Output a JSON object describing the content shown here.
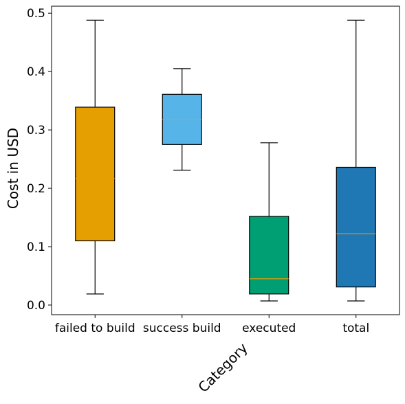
{
  "chart_data": {
    "type": "box",
    "title": "",
    "xlabel": "Category",
    "ylabel": "Cost in USD",
    "categories": [
      "failed to build",
      "success build",
      "executed",
      "total"
    ],
    "boxes": [
      {
        "category": "failed to build",
        "whisker_low": 0.019,
        "q1": 0.11,
        "median": 0.217,
        "q3": 0.339,
        "whisker_high": 0.488,
        "color": "#E69F00"
      },
      {
        "category": "success build",
        "whisker_low": 0.231,
        "q1": 0.275,
        "median": 0.318,
        "q3": 0.361,
        "whisker_high": 0.405,
        "color": "#56B4E9"
      },
      {
        "category": "executed",
        "whisker_low": 0.007,
        "q1": 0.019,
        "median": 0.045,
        "q3": 0.152,
        "whisker_high": 0.278,
        "color": "#009E73"
      },
      {
        "category": "total",
        "whisker_low": 0.007,
        "q1": 0.031,
        "median": 0.122,
        "q3": 0.236,
        "whisker_high": 0.488,
        "color": "#1F77B4"
      }
    ],
    "median_color": "#E69F00",
    "ylim": [
      -0.0165,
      0.512
    ],
    "yticks": [
      0.0,
      0.1,
      0.2,
      0.3,
      0.4,
      0.5
    ],
    "ytick_labels": [
      "0.0",
      "0.1",
      "0.2",
      "0.3",
      "0.4",
      "0.5"
    ],
    "grid": false,
    "legend": "none"
  }
}
